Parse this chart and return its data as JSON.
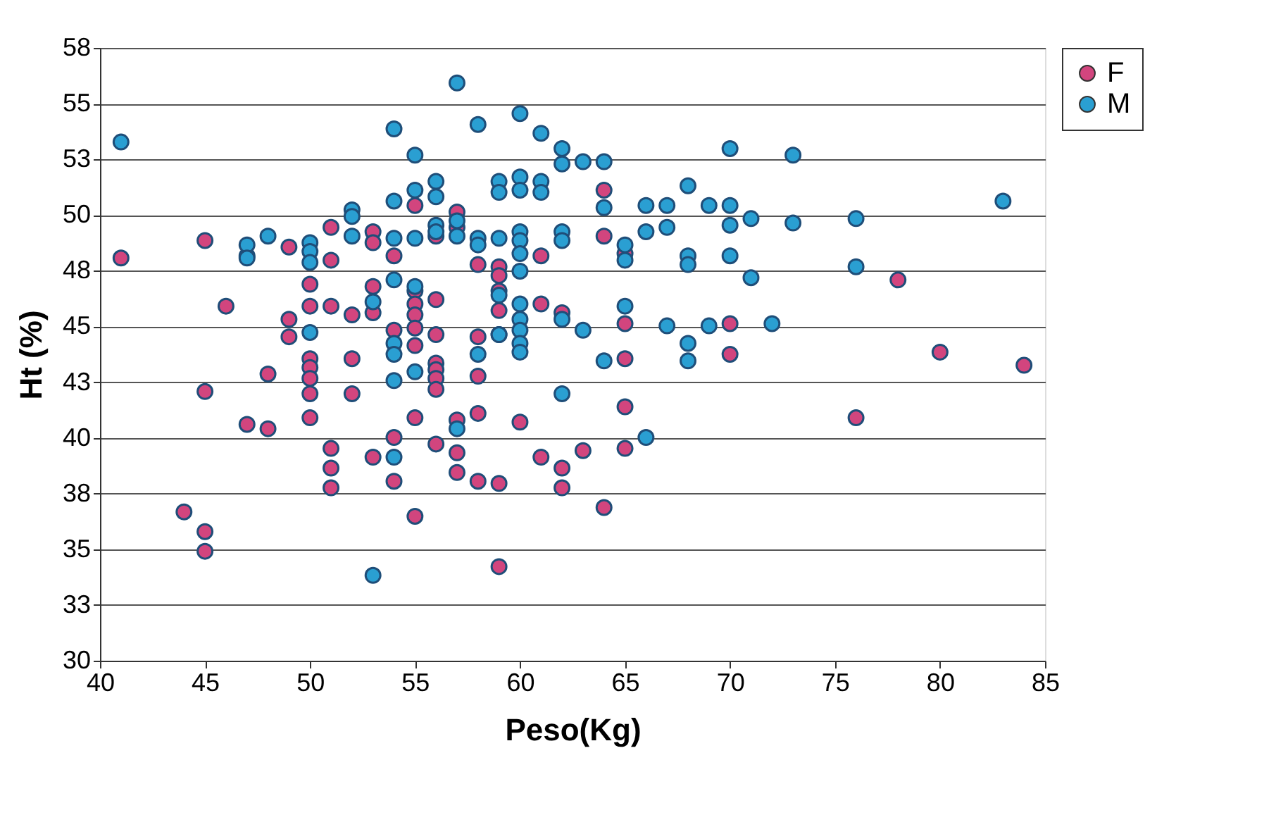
{
  "chart_data": {
    "type": "scatter",
    "xlabel": "Peso(Kg)",
    "ylabel": "Ht (%)",
    "xlim": [
      40,
      85
    ],
    "xticks": [
      40,
      45,
      50,
      55,
      60,
      65,
      70,
      75,
      80,
      85
    ],
    "ylim": [
      30,
      58
    ],
    "yticks": [
      30,
      {
        "value": 32.545,
        "label": "33"
      },
      {
        "value": 35.091,
        "label": "35"
      },
      {
        "value": 37.636,
        "label": "38"
      },
      {
        "value": 40.182,
        "label": "40"
      },
      {
        "value": 42.727,
        "label": "43"
      },
      {
        "value": 45.273,
        "label": "45"
      },
      {
        "value": 47.818,
        "label": "48"
      },
      {
        "value": 50.364,
        "label": "50"
      },
      {
        "value": 52.909,
        "label": "53"
      },
      {
        "value": 55.455,
        "label": "55"
      },
      58
    ],
    "grid": "y",
    "legend": "right",
    "marker": "circle",
    "series": [
      {
        "name": "F",
        "color": "#d2457e",
        "x": [
          41,
          44,
          45,
          45,
          45,
          45,
          46,
          47,
          47,
          48,
          48,
          49,
          49,
          49,
          50,
          50,
          50,
          50,
          50,
          50,
          50,
          51,
          51,
          51,
          51,
          51,
          51,
          52,
          52,
          52,
          53,
          53,
          53,
          53,
          53,
          54,
          54,
          54,
          54,
          55,
          55,
          55,
          55,
          55,
          55,
          55,
          55,
          56,
          56,
          56,
          56,
          56,
          56,
          56,
          56,
          57,
          57,
          57,
          57,
          57,
          58,
          58,
          58,
          58,
          58,
          59,
          59,
          59,
          59,
          59,
          59,
          59,
          60,
          61,
          61,
          61,
          62,
          62,
          62,
          63,
          64,
          64,
          64,
          65,
          65,
          65,
          65,
          65,
          70,
          70,
          76,
          78,
          80,
          84
        ],
        "values": [
          48.4,
          36.8,
          35.9,
          35.0,
          49.2,
          42.3,
          46.2,
          48.5,
          40.8,
          43.1,
          40.6,
          48.9,
          45.6,
          44.8,
          47.2,
          46.2,
          43.8,
          43.4,
          42.9,
          42.2,
          41.1,
          49.8,
          48.3,
          46.2,
          39.7,
          38.8,
          37.9,
          45.8,
          43.8,
          42.2,
          49.6,
          49.1,
          47.1,
          45.9,
          39.3,
          48.5,
          45.1,
          40.2,
          38.2,
          50.8,
          46.9,
          46.3,
          45.8,
          45.2,
          44.4,
          41.1,
          36.6,
          49.4,
          46.5,
          44.9,
          43.6,
          43.3,
          42.9,
          42.4,
          39.9,
          50.5,
          49.8,
          41.0,
          39.5,
          38.6,
          48.1,
          44.8,
          43.0,
          41.3,
          38.2,
          48.0,
          47.6,
          46.9,
          46.0,
          44.9,
          38.1,
          34.3,
          40.9,
          48.5,
          46.3,
          39.3,
          45.9,
          38.8,
          37.9,
          39.6,
          51.5,
          49.4,
          37.0,
          48.6,
          45.4,
          43.8,
          41.6,
          39.7,
          45.4,
          44.0,
          41.1,
          47.4,
          44.1,
          43.5
        ]
      },
      {
        "name": "M",
        "color": "#2a9fd2",
        "x": [
          41,
          47,
          47,
          48,
          50,
          50,
          50,
          50,
          52,
          52,
          52,
          53,
          53,
          54,
          54,
          54,
          54,
          54,
          54,
          54,
          54,
          55,
          55,
          55,
          55,
          55,
          56,
          56,
          56,
          56,
          57,
          57,
          57,
          57,
          58,
          58,
          58,
          58,
          59,
          59,
          59,
          59,
          59,
          60,
          60,
          60,
          60,
          60,
          60,
          60,
          60,
          60,
          60,
          60,
          60,
          61,
          61,
          61,
          62,
          62,
          62,
          62,
          62,
          62,
          63,
          63,
          64,
          64,
          64,
          65,
          65,
          65,
          66,
          66,
          66,
          67,
          67,
          67,
          68,
          68,
          68,
          68,
          68,
          69,
          69,
          70,
          70,
          70,
          70,
          71,
          71,
          72,
          73,
          73,
          76,
          76,
          83
        ],
        "values": [
          53.7,
          49.0,
          48.4,
          49.4,
          49.1,
          48.7,
          48.2,
          45.0,
          50.6,
          50.3,
          49.4,
          46.4,
          33.9,
          54.3,
          51.0,
          49.3,
          47.4,
          44.5,
          44.0,
          42.8,
          39.3,
          53.1,
          51.5,
          49.3,
          47.1,
          43.2,
          51.9,
          51.2,
          49.9,
          49.6,
          56.4,
          50.1,
          49.4,
          40.6,
          54.5,
          49.3,
          49.0,
          44.0,
          51.9,
          51.4,
          49.3,
          46.7,
          44.9,
          55.0,
          52.1,
          51.5,
          49.6,
          49.2,
          48.6,
          47.8,
          46.3,
          45.6,
          45.1,
          44.5,
          44.1,
          54.1,
          51.9,
          51.4,
          53.4,
          52.7,
          49.6,
          49.2,
          45.6,
          42.2,
          52.8,
          45.1,
          52.8,
          50.7,
          43.7,
          49.0,
          48.3,
          46.2,
          50.8,
          49.6,
          40.2,
          50.8,
          49.8,
          45.3,
          51.7,
          48.5,
          48.1,
          44.5,
          43.7,
          50.8,
          45.3,
          53.4,
          50.8,
          49.9,
          48.5,
          50.2,
          47.5,
          45.4,
          53.1,
          50.0,
          50.2,
          48.0,
          51.0
        ]
      }
    ]
  }
}
